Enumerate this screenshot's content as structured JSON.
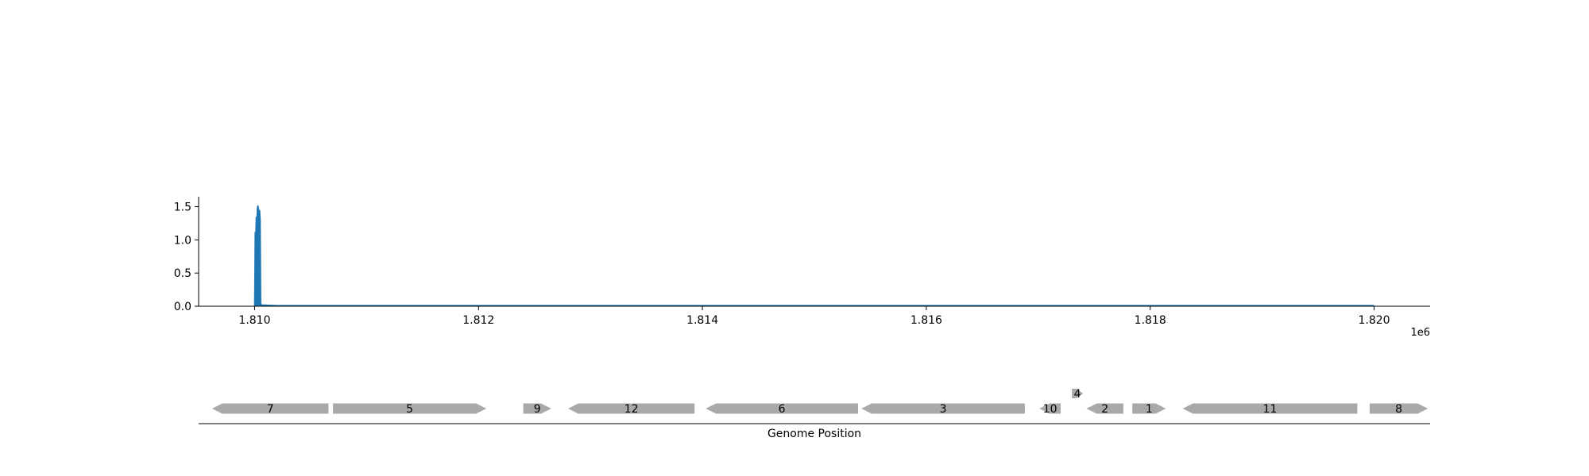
{
  "chart_data": [
    {
      "type": "area",
      "x_offset_label": "1e6",
      "xlim": [
        1809500,
        1820500
      ],
      "ylim": [
        0,
        1.65
      ],
      "x_ticks": [
        {
          "value": 1810000,
          "label": "1.810"
        },
        {
          "value": 1812000,
          "label": "1.812"
        },
        {
          "value": 1814000,
          "label": "1.814"
        },
        {
          "value": 1816000,
          "label": "1.816"
        },
        {
          "value": 1818000,
          "label": "1.818"
        },
        {
          "value": 1820000,
          "label": "1.820"
        }
      ],
      "y_ticks": [
        {
          "value": 0,
          "label": "0.0"
        },
        {
          "value": 0.5,
          "label": "0.5"
        },
        {
          "value": 1.0,
          "label": "1.0"
        },
        {
          "value": 1.5,
          "label": "1.5"
        }
      ],
      "color": "#1f77b4",
      "series": [
        {
          "x": [
            1810000,
            1810005,
            1810010,
            1810015,
            1810020,
            1810025,
            1810030,
            1810035,
            1810040,
            1810045,
            1810050,
            1810055,
            1810060,
            1810200,
            1815000,
            1820000
          ],
          "y": [
            0.0,
            1.12,
            1.05,
            1.35,
            1.28,
            1.48,
            1.52,
            1.47,
            1.4,
            1.45,
            1.3,
            0.05,
            0.02,
            0.01,
            0.01,
            0.01
          ]
        }
      ]
    },
    {
      "type": "gene_track",
      "xlabel": "Genome Position",
      "xlim": [
        1809500,
        1820500
      ],
      "genes": [
        {
          "label": "7",
          "start": 1809620,
          "end": 1810660,
          "strand": "-",
          "row": 0
        },
        {
          "label": "5",
          "start": 1810700,
          "end": 1812070,
          "strand": "+",
          "row": 0
        },
        {
          "label": "9",
          "start": 1812400,
          "end": 1812650,
          "strand": "+",
          "row": 0
        },
        {
          "label": "12",
          "start": 1812800,
          "end": 1813930,
          "strand": "-",
          "row": 0
        },
        {
          "label": "6",
          "start": 1814030,
          "end": 1815390,
          "strand": "-",
          "row": 0
        },
        {
          "label": "3",
          "start": 1815420,
          "end": 1816880,
          "strand": "-",
          "row": 0
        },
        {
          "label": "10",
          "start": 1817010,
          "end": 1817200,
          "strand": "-",
          "row": 0
        },
        {
          "label": "4",
          "start": 1817300,
          "end": 1817400,
          "strand": "+",
          "row": 1
        },
        {
          "label": "2",
          "start": 1817430,
          "end": 1817760,
          "strand": "-",
          "row": 0
        },
        {
          "label": "1",
          "start": 1817840,
          "end": 1818140,
          "strand": "+",
          "row": 0
        },
        {
          "label": "11",
          "start": 1818290,
          "end": 1819850,
          "strand": "-",
          "row": 0
        },
        {
          "label": "8",
          "start": 1819960,
          "end": 1820480,
          "strand": "+",
          "row": 0
        }
      ],
      "gene_color": "#a9a9a9"
    }
  ]
}
